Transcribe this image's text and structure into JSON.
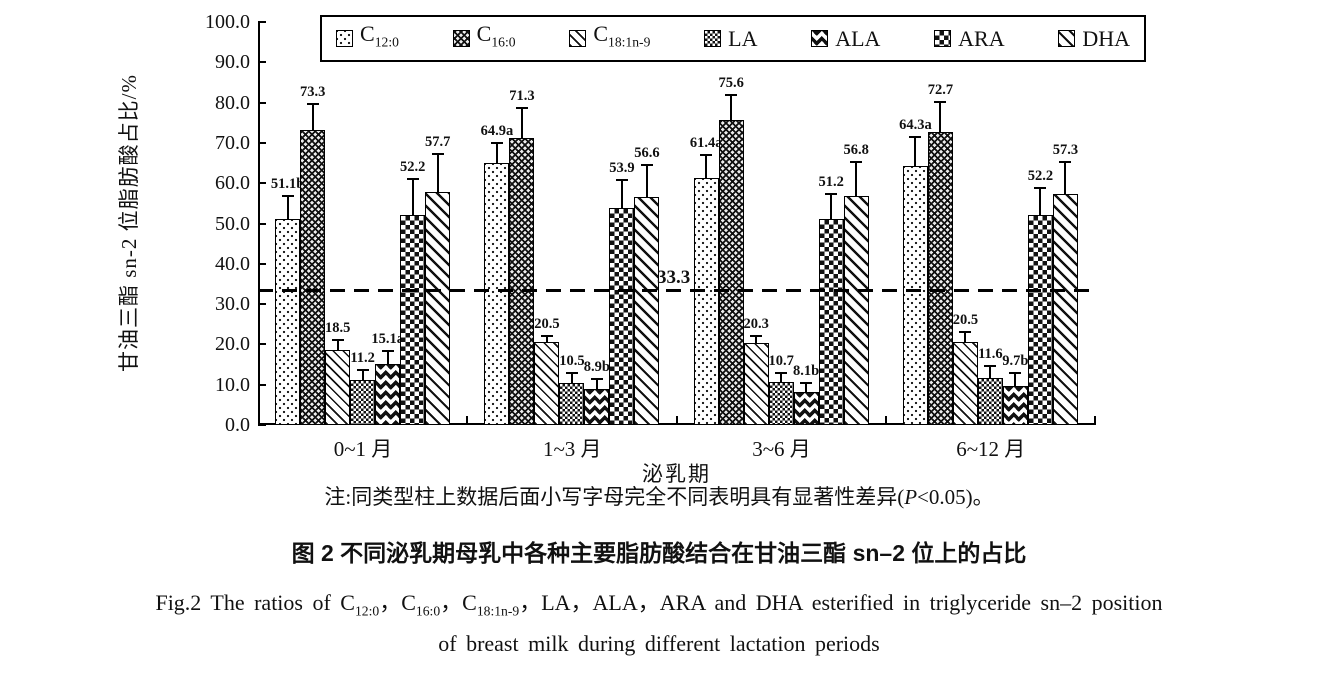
{
  "figure": {
    "caption_cn": "图 2  不同泌乳期母乳中各种主要脂肪酸结合在甘油三酯 sn–2 位上的占比",
    "caption_en_line1_segments": [
      {
        "text": "Fig.2  The ratios of C"
      },
      {
        "text": "12:0",
        "sub": true
      },
      {
        "text": "，C"
      },
      {
        "text": "16:0",
        "sub": true
      },
      {
        "text": "，C"
      },
      {
        "text": "18:1n-9",
        "sub": true
      },
      {
        "text": "，LA，ALA，ARA and DHA esterified in triglyceride sn–2 position"
      }
    ],
    "caption_en_line2": "of breast milk during different lactation periods",
    "note_segments": [
      {
        "text": "注:同类型柱上数据后面小写字母完全不同表明具有显著性差异("
      },
      {
        "text": "P",
        "italic": true
      },
      {
        "text": "<0.05)。"
      }
    ]
  },
  "chart_data": {
    "type": "bar",
    "title": "图 2  不同泌乳期母乳中各种主要脂肪酸结合在甘油三酯 sn–2 位上的占比",
    "xlabel": "泌乳期",
    "ylabel": "甘油三酯 sn-2 位脂肪酸占比/%",
    "ylim": [
      0,
      100
    ],
    "ytick_step": 10,
    "ytick_labels": [
      "100.0",
      "90.0",
      "80.0",
      "70.0",
      "60.0",
      "50.0",
      "40.0",
      "30.0",
      "20.0",
      "10.0",
      "0.0"
    ],
    "grid": false,
    "legend_position": "top-inside",
    "categories": [
      "0~1 月",
      "1~3 月",
      "3~6 月",
      "6~12 月"
    ],
    "reference_line": {
      "value": 33.3,
      "label": "33.3"
    },
    "series": [
      {
        "id": "c12-0",
        "name": "C12:0",
        "legend_main": "C",
        "legend_sub": "12:0",
        "pattern": "pat-dots",
        "values": [
          51.1,
          64.9,
          61.4,
          64.3
        ],
        "labels": [
          "51.1b",
          "64.9a",
          "61.4a",
          "64.3a"
        ],
        "errors": [
          5.7,
          5.1,
          5.6,
          7.1
        ]
      },
      {
        "id": "c16-0",
        "name": "C16:0",
        "legend_main": "C",
        "legend_sub": "16:0",
        "pattern": "pat-densecross",
        "values": [
          73.3,
          71.3,
          75.6,
          72.7
        ],
        "labels": [
          "73.3",
          "71.3",
          "75.6",
          "72.7"
        ],
        "errors": [
          6.4,
          7.3,
          6.3,
          7.5
        ]
      },
      {
        "id": "c18-1n-9",
        "name": "C18:1n-9",
        "legend_main": "C",
        "legend_sub": "18:1n-9",
        "pattern": "pat-thindiag",
        "values": [
          18.5,
          20.5,
          20.3,
          20.5
        ],
        "labels": [
          "18.5",
          "20.5",
          "20.3",
          "20.5"
        ],
        "errors": [
          2.5,
          1.5,
          1.7,
          2.5
        ]
      },
      {
        "id": "la",
        "name": "LA",
        "legend_main": "LA",
        "legend_sub": "",
        "pattern": "pat-smallcheck",
        "values": [
          11.2,
          10.5,
          10.7,
          11.6
        ],
        "labels": [
          "11.2",
          "10.5",
          "10.7",
          "11.6"
        ],
        "errors": [
          2.5,
          2.5,
          2.3,
          3.0
        ]
      },
      {
        "id": "ala",
        "name": "ALA",
        "legend_main": "ALA",
        "legend_sub": "",
        "pattern": "pat-zigzag",
        "values": [
          15.1,
          8.9,
          8.1,
          9.7
        ],
        "labels": [
          "15.1a",
          "8.9b",
          "8.1b",
          "9.7b"
        ],
        "errors": [
          3.2,
          2.4,
          2.4,
          3.3
        ]
      },
      {
        "id": "ara",
        "name": "ARA",
        "legend_main": "ARA",
        "legend_sub": "",
        "pattern": "pat-check",
        "values": [
          52.2,
          53.9,
          51.2,
          52.2
        ],
        "labels": [
          "52.2",
          "53.9",
          "51.2",
          "52.2"
        ],
        "errors": [
          8.8,
          6.9,
          6.0,
          6.6
        ]
      },
      {
        "id": "dha",
        "name": "DHA",
        "legend_main": "DHA",
        "legend_sub": "",
        "pattern": "pat-diag",
        "values": [
          57.7,
          56.6,
          56.8,
          57.3
        ],
        "labels": [
          "57.7",
          "56.6",
          "56.8",
          "57.3"
        ],
        "errors": [
          9.6,
          7.9,
          8.5,
          8.0
        ]
      }
    ]
  },
  "colors": {
    "bar_stroke": "#000000",
    "pattern_ink": "#111111",
    "background": "#ffffff",
    "text": "#111111"
  }
}
